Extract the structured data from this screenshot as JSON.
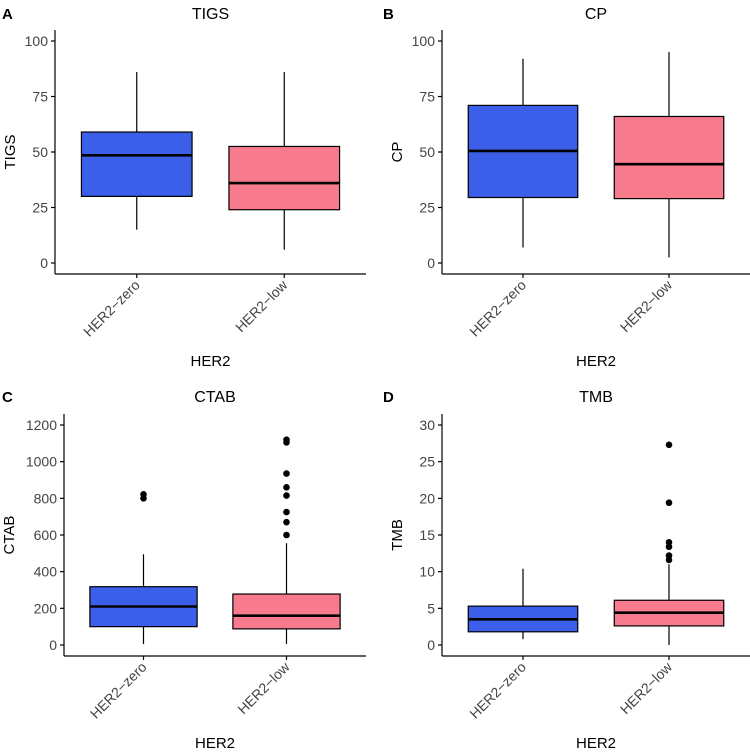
{
  "chart_data": [
    {
      "panel_label": "A",
      "type": "box",
      "title": "TIGS",
      "xlabel": "HER2",
      "ylabel": "TIGS",
      "categories": [
        "HER2−zero",
        "HER2−low"
      ],
      "ylim": [
        0,
        100
      ],
      "yticks": [
        "0",
        "25",
        "50",
        "75",
        "100"
      ],
      "boxes": [
        {
          "category": "HER2−zero",
          "whisker_low": 15,
          "q1": 30,
          "median": 48.5,
          "q3": 59,
          "whisker_high": 86,
          "outliers": [],
          "color": "#3b5fe8"
        },
        {
          "category": "HER2−low",
          "whisker_low": 6,
          "q1": 24,
          "median": 36,
          "q3": 52.5,
          "whisker_high": 86,
          "outliers": [],
          "color": "#f87a8d"
        }
      ]
    },
    {
      "panel_label": "B",
      "type": "box",
      "title": "CP",
      "xlabel": "HER2",
      "ylabel": "CP",
      "categories": [
        "HER2−zero",
        "HER2−low"
      ],
      "ylim": [
        0,
        100
      ],
      "yticks": [
        "0",
        "25",
        "50",
        "75",
        "100"
      ],
      "boxes": [
        {
          "category": "HER2−zero",
          "whisker_low": 7,
          "q1": 29.5,
          "median": 50.5,
          "q3": 71,
          "whisker_high": 92,
          "outliers": [],
          "color": "#3b5fe8"
        },
        {
          "category": "HER2−low",
          "whisker_low": 2.5,
          "q1": 29,
          "median": 44.5,
          "q3": 66,
          "whisker_high": 95,
          "outliers": [],
          "color": "#f87a8d"
        }
      ]
    },
    {
      "panel_label": "C",
      "type": "box",
      "title": "CTAB",
      "xlabel": "HER2",
      "ylabel": "CTAB",
      "categories": [
        "HER2−zero",
        "HER2−low"
      ],
      "ylim": [
        0,
        1200
      ],
      "yticks": [
        "0",
        "200",
        "400",
        "600",
        "800",
        "1000",
        "1200"
      ],
      "boxes": [
        {
          "category": "HER2−zero",
          "whisker_low": 5,
          "q1": 100,
          "median": 210,
          "q3": 318,
          "whisker_high": 495,
          "outliers": [
            800,
            822
          ],
          "color": "#3b5fe8"
        },
        {
          "category": "HER2−low",
          "whisker_low": 5,
          "q1": 88,
          "median": 160,
          "q3": 278,
          "whisker_high": 555,
          "outliers": [
            600,
            670,
            725,
            815,
            860,
            935,
            1105,
            1120
          ],
          "color": "#f87a8d"
        }
      ]
    },
    {
      "panel_label": "D",
      "type": "box",
      "title": "TMB",
      "xlabel": "HER2",
      "ylabel": "TMB",
      "categories": [
        "HER2−zero",
        "HER2−low"
      ],
      "ylim": [
        0,
        30
      ],
      "yticks": [
        "0",
        "5",
        "10",
        "15",
        "20",
        "25",
        "30"
      ],
      "boxes": [
        {
          "category": "HER2−zero",
          "whisker_low": 0.8,
          "q1": 1.8,
          "median": 3.5,
          "q3": 5.3,
          "whisker_high": 10.4,
          "outliers": [],
          "color": "#3b5fe8"
        },
        {
          "category": "HER2−low",
          "whisker_low": 0,
          "q1": 2.6,
          "median": 4.4,
          "q3": 6.1,
          "whisker_high": 11,
          "outliers": [
            11.6,
            12.2,
            13.4,
            14,
            19.4,
            27.3
          ],
          "color": "#f87a8d"
        }
      ]
    }
  ]
}
